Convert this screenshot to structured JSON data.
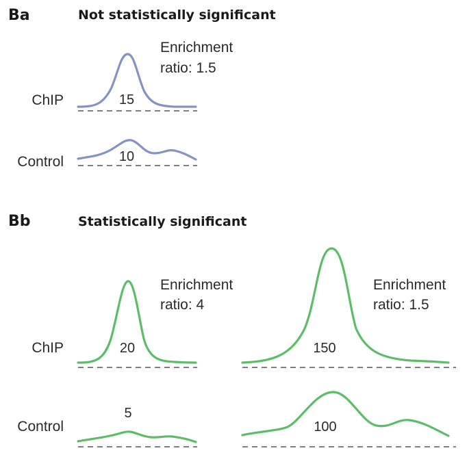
{
  "panel_a": {
    "label": "Ba",
    "title": "Not statistically significant",
    "color": "#8492c5",
    "ratio_line1": "Enrichment",
    "ratio_line2": "ratio: 1.5",
    "chip_label": "ChIP",
    "control_label": "Control",
    "chip_value": "15",
    "control_value": "10"
  },
  "panel_b": {
    "label": "Bb",
    "title": "Statistically significant",
    "color": "#5cbd67",
    "chip_label": "ChIP",
    "control_label": "Control",
    "left": {
      "ratio_line1": "Enrichment",
      "ratio_line2": "ratio: 4",
      "chip_value": "20",
      "control_value": "5"
    },
    "right": {
      "ratio_line1": "Enrichment",
      "ratio_line2": "ratio: 1.5",
      "chip_value": "150",
      "control_value": "100"
    }
  }
}
